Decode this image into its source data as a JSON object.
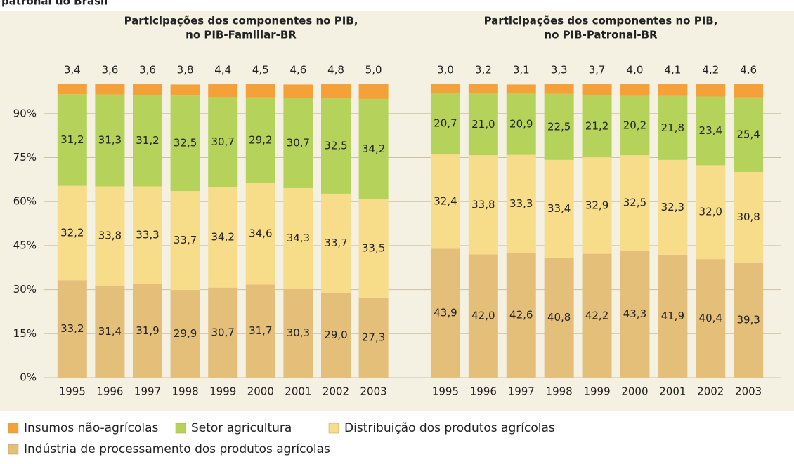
{
  "page_caption": "patronal do Brasil",
  "chart_data": [
    {
      "type": "stacked-bar",
      "title": [
        "Participações dos componentes no PIB,",
        "no PIB-Familiar-BR"
      ],
      "categories": [
        "1995",
        "1996",
        "1997",
        "1998",
        "1999",
        "2000",
        "2001",
        "2002",
        "2003"
      ],
      "ylim": [
        0,
        100
      ],
      "yticks": [
        {
          "value": 0,
          "label": "0%"
        },
        {
          "value": 15,
          "label": "15%"
        },
        {
          "value": 30,
          "label": "30%"
        },
        {
          "value": 45,
          "label": "45%"
        },
        {
          "value": 60,
          "label": "60%"
        },
        {
          "value": 75,
          "label": "75%"
        },
        {
          "value": 90,
          "label": "90%"
        }
      ],
      "grid": true,
      "series": [
        {
          "name": "Indústria de processamento dos produtos agrícolas",
          "color": "#e4bf7a",
          "values": [
            33.2,
            31.4,
            31.9,
            29.9,
            30.7,
            31.7,
            30.3,
            29.0,
            27.3
          ],
          "value_labels": [
            "33,2",
            "31,4",
            "31,9",
            "29,9",
            "30,7",
            "31,7",
            "30,3",
            "29,0",
            "27,3"
          ]
        },
        {
          "name": "Distribuição dos produtos agrícolas",
          "color": "#f7dc8a",
          "values": [
            32.2,
            33.8,
            33.3,
            33.7,
            34.2,
            34.6,
            34.3,
            33.7,
            33.5
          ],
          "value_labels": [
            "32,2",
            "33,8",
            "33,3",
            "33,7",
            "34,2",
            "34,6",
            "34,3",
            "33,7",
            "33,5"
          ]
        },
        {
          "name": "Setor agricultura",
          "color": "#b5d35a",
          "values": [
            31.2,
            31.3,
            31.2,
            32.5,
            30.7,
            29.2,
            30.7,
            32.5,
            34.2
          ],
          "value_labels": [
            "31,2",
            "31,3",
            "31,2",
            "32,5",
            "30,7",
            "29,2",
            "30,7",
            "32,5",
            "34,2"
          ]
        },
        {
          "name": "Insumos não-agrícolas",
          "color": "#f4a13a",
          "values": [
            3.4,
            3.6,
            3.6,
            3.8,
            4.4,
            4.5,
            4.6,
            4.8,
            5.0
          ],
          "value_labels": [
            "3,4",
            "3,6",
            "3,6",
            "3,8",
            "4,4",
            "4,5",
            "4,6",
            "4,8",
            "5,0"
          ]
        }
      ]
    },
    {
      "type": "stacked-bar",
      "title": [
        "Participações dos componentes no PIB,",
        "no PIB-Patronal-BR"
      ],
      "categories": [
        "1995",
        "1996",
        "1997",
        "1998",
        "1999",
        "2000",
        "2001",
        "2002",
        "2003"
      ],
      "ylim": [
        0,
        100
      ],
      "series": [
        {
          "name": "Indústria de processamento dos produtos agrícolas",
          "color": "#e4bf7a",
          "values": [
            43.9,
            42.0,
            42.6,
            40.8,
            42.2,
            43.3,
            41.9,
            40.4,
            39.3
          ],
          "value_labels": [
            "43,9",
            "42,0",
            "42,6",
            "40,8",
            "42,2",
            "43,3",
            "41,9",
            "40,4",
            "39,3"
          ]
        },
        {
          "name": "Distribuição dos produtos agrícolas",
          "color": "#f7dc8a",
          "values": [
            32.4,
            33.8,
            33.3,
            33.4,
            32.9,
            32.5,
            32.3,
            32.0,
            30.8
          ],
          "value_labels": [
            "32,4",
            "33,8",
            "33,3",
            "33,4",
            "32,9",
            "32,5",
            "32,3",
            "32,0",
            "30,8"
          ]
        },
        {
          "name": "Setor agricultura",
          "color": "#b5d35a",
          "values": [
            20.7,
            21.0,
            20.9,
            22.5,
            21.2,
            20.2,
            21.8,
            23.4,
            25.4
          ],
          "value_labels": [
            "20,7",
            "21,0",
            "20,9",
            "22,5",
            "21,2",
            "20,2",
            "21,8",
            "23,4",
            "25,4"
          ]
        },
        {
          "name": "Insumos não-agrícolas",
          "color": "#f4a13a",
          "values": [
            3.0,
            3.2,
            3.1,
            3.3,
            3.7,
            4.0,
            4.1,
            4.2,
            4.6
          ],
          "value_labels": [
            "3,0",
            "3,2",
            "3,1",
            "3,3",
            "3,7",
            "4,0",
            "4,1",
            "4,2",
            "4,6"
          ]
        }
      ]
    }
  ]
}
